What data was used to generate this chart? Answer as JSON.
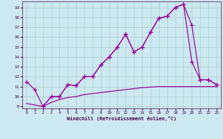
{
  "xlabel": "Windchill (Refroidissement éolien,°C)",
  "background_color": "#cce8f0",
  "grid_color": "#aacccc",
  "line_color": "#990099",
  "xlim": [
    -0.5,
    23.5
  ],
  "ylim": [
    8.8,
    19.6
  ],
  "yticks": [
    9,
    10,
    11,
    12,
    13,
    14,
    15,
    16,
    17,
    18,
    19
  ],
  "xticks": [
    0,
    1,
    2,
    3,
    4,
    5,
    6,
    7,
    8,
    9,
    10,
    11,
    12,
    13,
    14,
    15,
    16,
    17,
    18,
    19,
    20,
    21,
    22,
    23
  ],
  "line1_x": [
    0,
    1,
    2,
    3,
    4,
    5,
    6,
    7,
    8,
    9,
    10,
    11,
    12,
    13,
    14,
    15,
    16,
    17,
    18,
    19,
    20,
    21,
    22,
    23
  ],
  "line1_y": [
    11.5,
    10.7,
    9.0,
    10.0,
    10.0,
    11.2,
    11.1,
    12.0,
    12.0,
    13.2,
    14.0,
    15.0,
    16.3,
    14.5,
    15.0,
    16.5,
    17.9,
    18.1,
    19.0,
    19.3,
    17.2,
    11.7,
    11.7,
    11.2
  ],
  "line2_x": [
    2,
    3,
    4,
    5,
    6,
    7,
    8,
    9,
    10,
    11,
    12,
    13,
    14,
    15,
    16,
    17,
    18,
    19,
    20,
    21,
    22,
    23
  ],
  "line2_y": [
    9.0,
    10.0,
    10.0,
    11.2,
    11.1,
    12.0,
    12.0,
    13.2,
    14.0,
    15.0,
    16.3,
    14.5,
    15.0,
    16.5,
    17.9,
    18.1,
    19.0,
    19.3,
    13.5,
    11.7,
    11.7,
    11.2
  ],
  "line3_x": [
    0,
    2,
    3,
    4,
    5,
    6,
    7,
    8,
    9,
    10,
    11,
    12,
    13,
    14,
    15,
    16,
    17,
    18,
    19,
    20,
    21,
    22,
    23
  ],
  "line3_y": [
    9.3,
    9.0,
    9.4,
    9.7,
    9.9,
    10.0,
    10.2,
    10.3,
    10.4,
    10.5,
    10.6,
    10.7,
    10.8,
    10.9,
    10.95,
    11.0,
    11.0,
    11.0,
    11.0,
    11.0,
    11.0,
    11.0,
    11.0
  ]
}
